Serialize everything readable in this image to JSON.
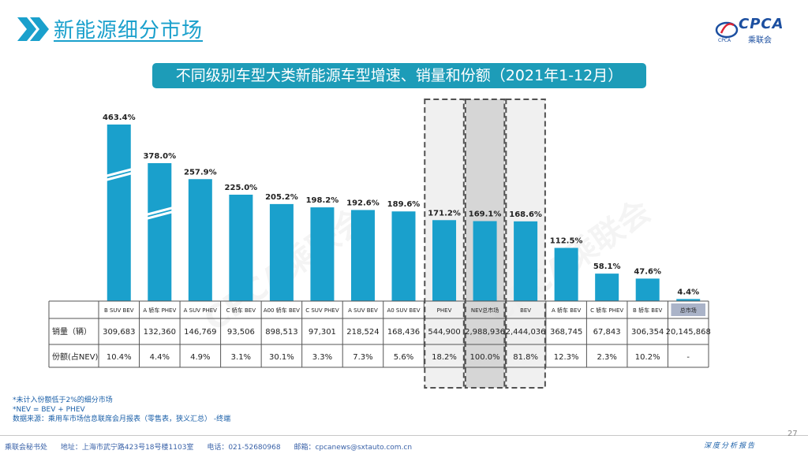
{
  "header": {
    "title": "新能源细分市场",
    "banner": "不同级别车型大类新能源车型增速、销量和份额（2021年1-12月）"
  },
  "logo": {
    "text": "CPCA",
    "sub": "乘联会",
    "tiny": "CPCA"
  },
  "colors": {
    "bar": "#1aa0cc",
    "highlight_bar": "#4fb8dd",
    "total_cell": "#aab3c8",
    "accent": "#1d9cb8"
  },
  "chart_data": {
    "type": "bar",
    "categories": [
      "B SUV BEV",
      "A 轿车 PHEV",
      "A SUV PHEV",
      "C 轿车 BEV",
      "A00 轿车 BEV",
      "C SUV PHEV",
      "A SUV BEV",
      "A0 SUV BEV",
      "PHEV",
      "NEV总市场",
      "BEV",
      "A 轿车 BEV",
      "C 轿车 PHEV",
      "B 轿车 BEV",
      "总市场"
    ],
    "growth": [
      463.4,
      378.0,
      257.9,
      225.0,
      205.2,
      198.2,
      192.6,
      189.6,
      171.2,
      169.1,
      168.6,
      112.5,
      58.1,
      47.6,
      4.4
    ],
    "growth_labels": [
      "463.4%",
      "378.0%",
      "257.9%",
      "225.0%",
      "205.2%",
      "198.2%",
      "192.6%",
      "189.6%",
      "171.2%",
      "169.1%",
      "168.6%",
      "112.5%",
      "58.1%",
      "47.6%",
      "4.4%"
    ],
    "broken_axis": [
      true,
      true,
      false,
      false,
      false,
      false,
      false,
      false,
      false,
      false,
      false,
      false,
      false,
      false,
      false
    ],
    "highlighted": [
      false,
      false,
      false,
      false,
      false,
      false,
      false,
      false,
      true,
      true,
      true,
      false,
      false,
      false,
      false
    ],
    "sales_row_label": "销量（辆）",
    "sales": [
      "309,683",
      "132,360",
      "146,769",
      "93,506",
      "898,513",
      "97,301",
      "218,524",
      "168,436",
      "544,900",
      "2,988,936",
      "2,444,036",
      "368,745",
      "67,843",
      "306,354",
      "20,145,868"
    ],
    "share_row_label": "份额(占NEV)",
    "share": [
      "10.4%",
      "4.4%",
      "4.9%",
      "3.1%",
      "30.1%",
      "3.3%",
      "7.3%",
      "5.6%",
      "18.2%",
      "100.0%",
      "81.8%",
      "12.3%",
      "2.3%",
      "10.2%",
      "-"
    ],
    "ylabel": ""
  },
  "footnotes": [
    "*未计入份额低于2%的细分市场",
    "*NEV = BEV + PHEV",
    "数据来源：乘用车市场信息联席会月报表（零售表，狭义汇总） -终端"
  ],
  "footer": {
    "org": "乘联会秘书处",
    "address": "地址：上海市武宁路423号18号楼1103室",
    "phone": "电话：021-52680968",
    "email": "邮箱：cpcanews@sxtauto.com.cn",
    "page_number": "27",
    "tagline": "深度分析报告"
  },
  "watermark": "CPCA乘联会"
}
